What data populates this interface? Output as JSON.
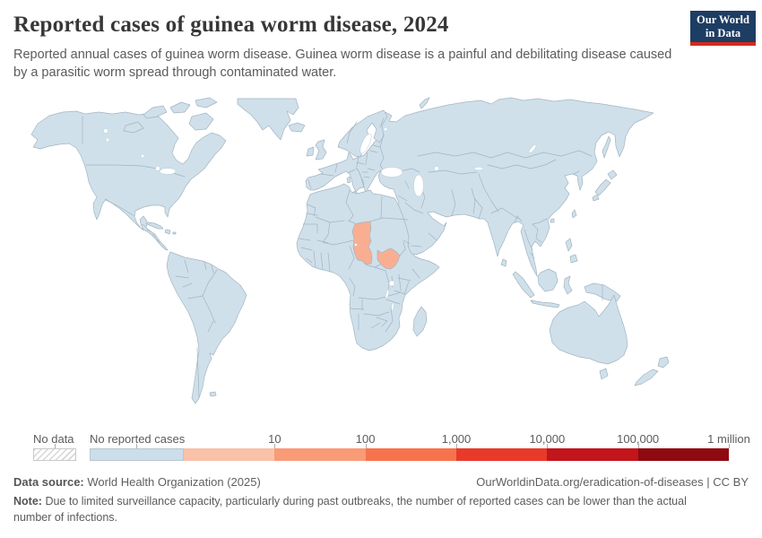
{
  "header": {
    "title": "Reported cases of guinea worm disease, 2024",
    "subtitle": "Reported annual cases of guinea worm disease. Guinea worm disease is a painful and debilitating disease caused by a parasitic worm spread through contaminated water.",
    "logo": {
      "line1": "Our World",
      "line2": "in Data",
      "bg_color": "#1d3d63",
      "accent_color": "#d42b1f"
    }
  },
  "map": {
    "land_color": "#cfe0ea",
    "border_color": "#a3b4c2",
    "highlight_color": "#f9ae92",
    "highlighted_countries": [
      {
        "name": "Chad",
        "value_bucket": "1–10 reported cases"
      },
      {
        "name": "South Sudan",
        "value_bucket": "1–10 reported cases"
      }
    ]
  },
  "legend": {
    "no_data_label": "No data",
    "no_cases_label": "No reported cases",
    "no_cases_color": "#cbdee9",
    "tick_labels": [
      "10",
      "100",
      "1,000",
      "10,000",
      "100,000",
      "1 million"
    ],
    "segment_colors": [
      "#f9c2a9",
      "#f99b77",
      "#f7734d",
      "#e83a2b",
      "#c2151c",
      "#8f0a10"
    ]
  },
  "footer": {
    "data_source_label": "Data source:",
    "data_source": "World Health Organization (2025)",
    "link": "OurWorldinData.org/eradication-of-diseases | CC BY",
    "note_label": "Note:",
    "note": "Due to limited surveillance capacity, particularly during past outbreaks, the number of reported cases can be lower than the actual number of infections."
  },
  "chart_data": {
    "type": "choropleth_map",
    "title": "Reported cases of guinea worm disease, 2024",
    "unit": "reported cases of guinea worm disease",
    "scale_type": "log",
    "legend_buckets": [
      "No data",
      "No reported cases",
      "≤10",
      "≤100",
      "≤1,000",
      "≤10,000",
      "≤100,000",
      "≤1 million"
    ],
    "data": [
      {
        "entity": "Chad",
        "value_bucket": "1–10"
      },
      {
        "entity": "South Sudan",
        "value_bucket": "1–10"
      },
      {
        "entity": "All other countries shown",
        "value_bucket": "No reported cases"
      }
    ]
  }
}
